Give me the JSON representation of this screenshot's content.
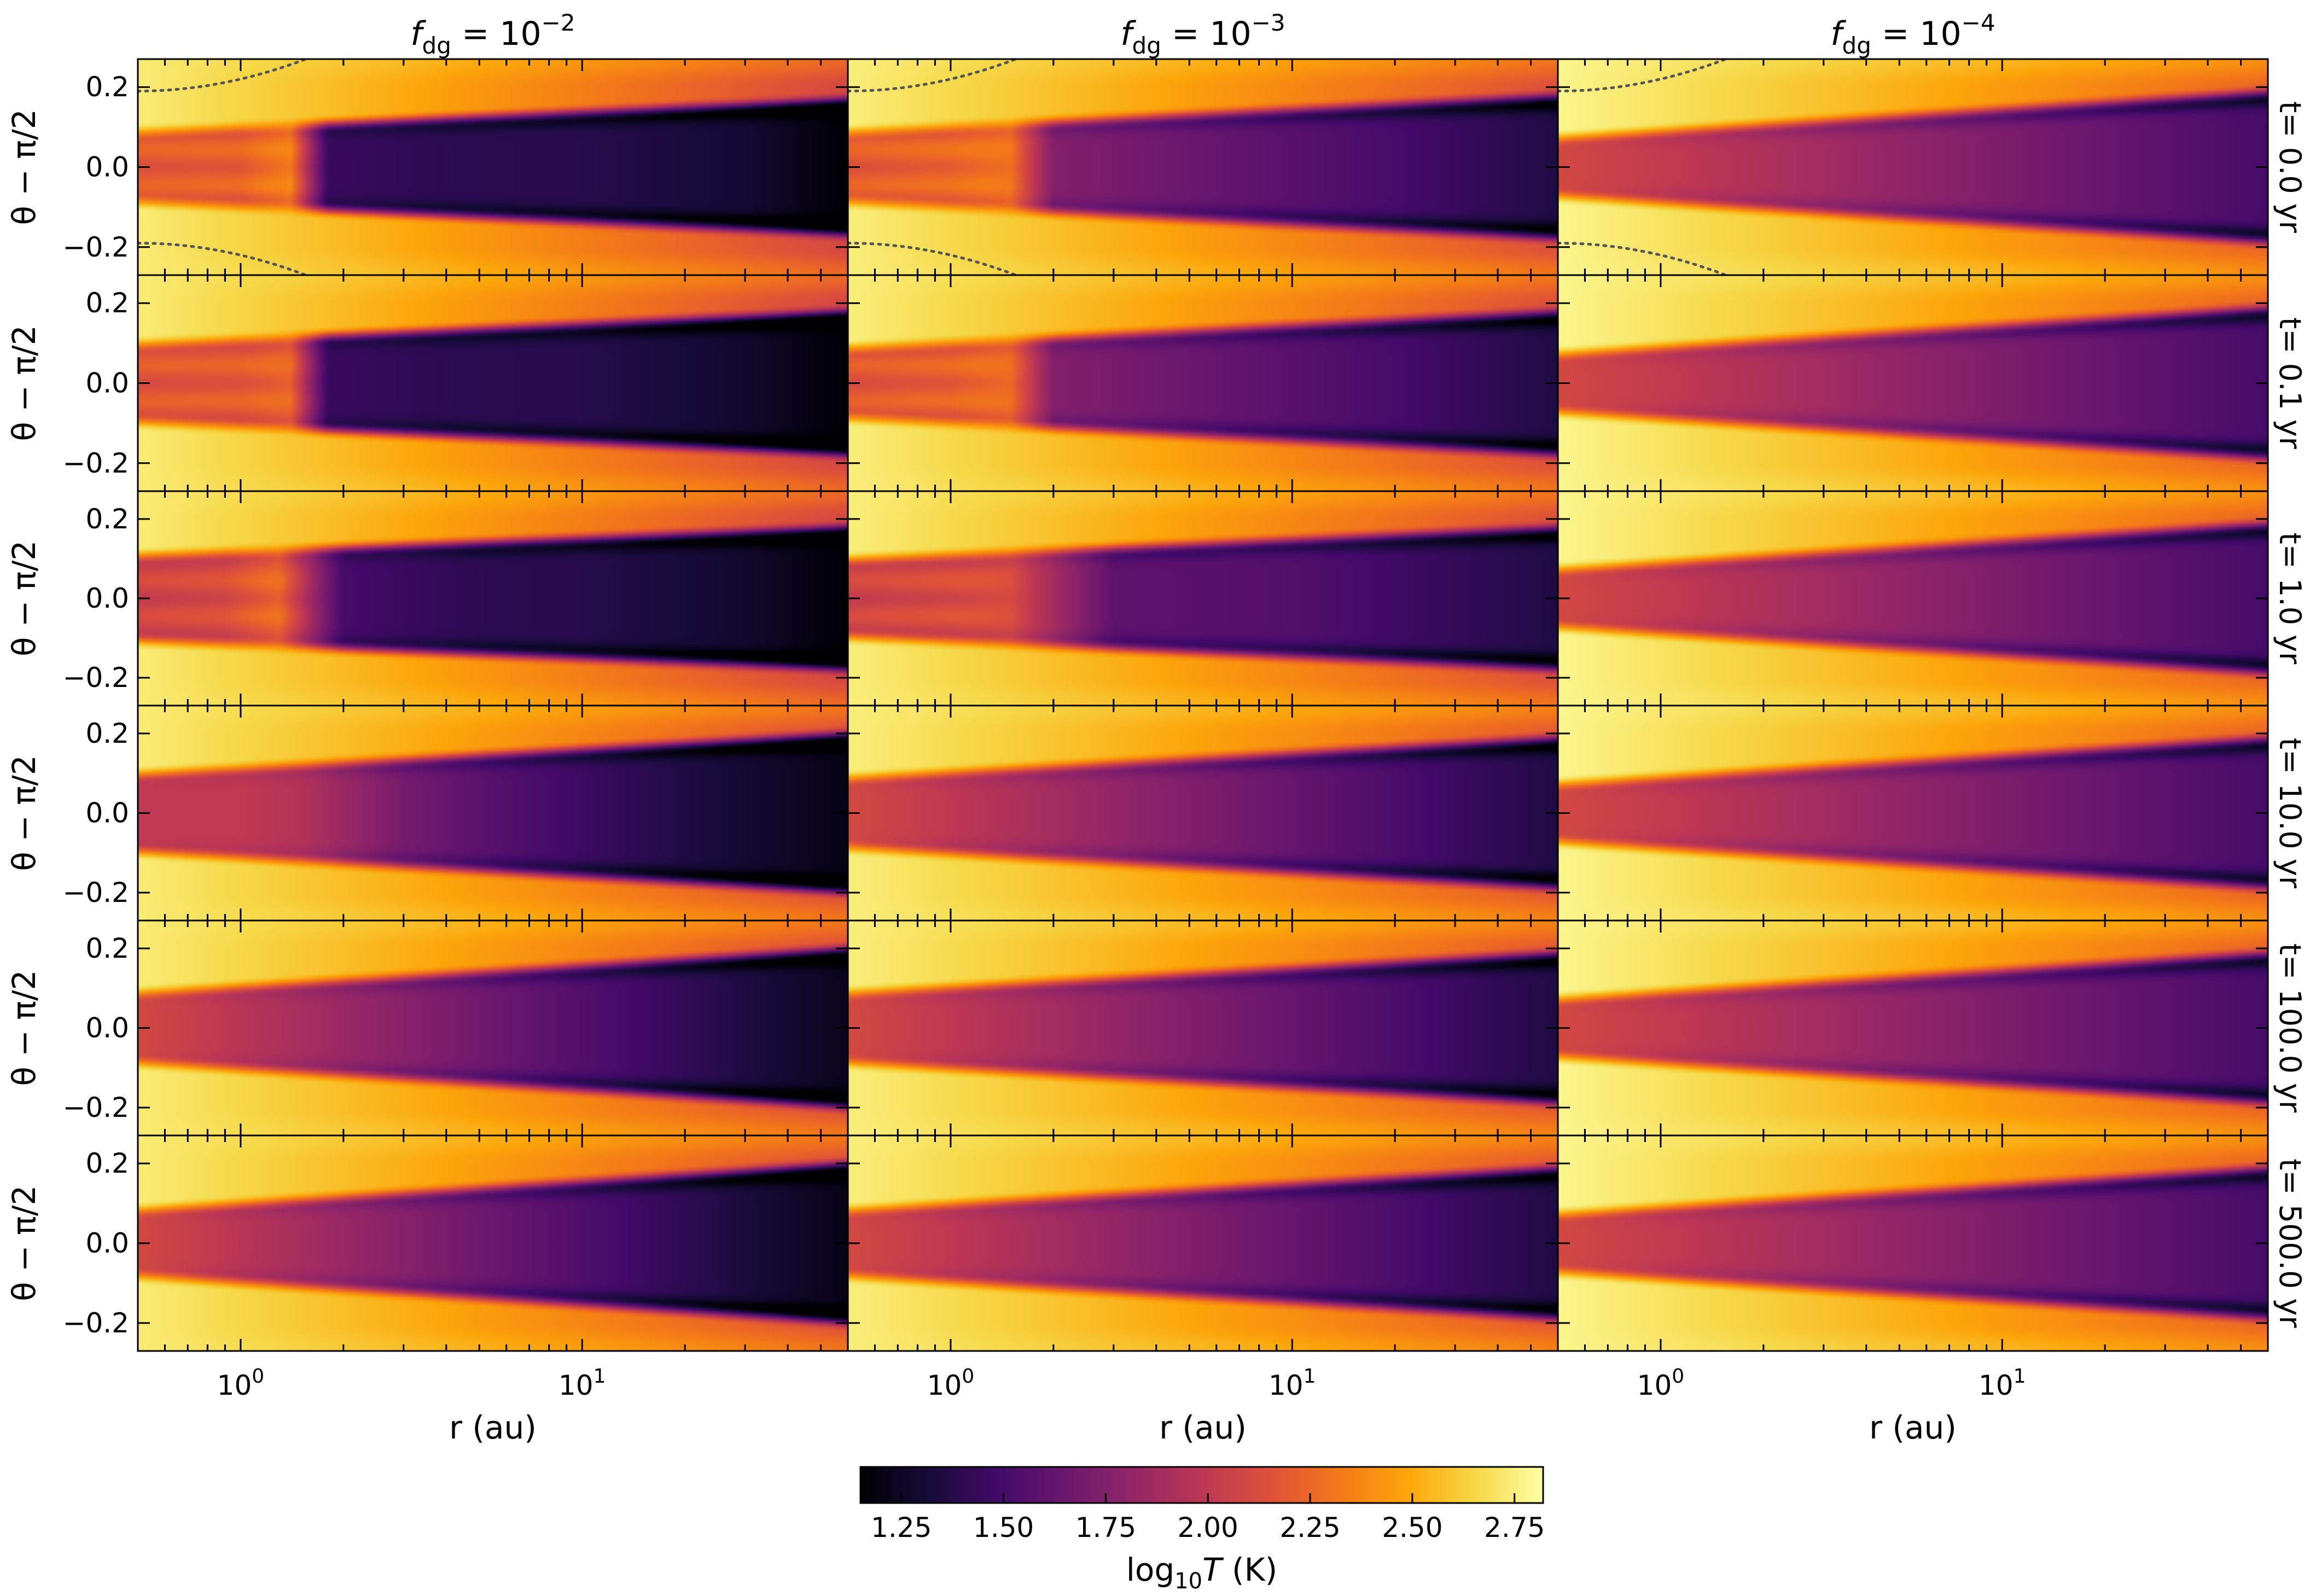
{
  "chart_data": {
    "type": "heatmap",
    "panel_grid": {
      "rows": 6,
      "cols": 3
    },
    "column_titles": [
      {
        "base": "f",
        "sub": "dg",
        "rest": " = 10",
        "sup": "−2"
      },
      {
        "base": "f",
        "sub": "dg",
        "rest": " = 10",
        "sup": "−3"
      },
      {
        "base": "f",
        "sub": "dg",
        "rest": " = 10",
        "sup": "−4"
      }
    ],
    "row_labels": [
      "t= 0.0 yr",
      "t= 0.1 yr",
      "t= 1.0 yr",
      "t= 10.0 yr",
      "t= 100.0 yr",
      "t= 500.0 yr"
    ],
    "xlabel": "r (au)",
    "ylabel": "θ − π/2",
    "x_scale": "log",
    "xlim": [
      0.5,
      60
    ],
    "x_ticks": [
      {
        "value": 1,
        "base": "10",
        "sup": "0"
      },
      {
        "value": 10,
        "base": "10",
        "sup": "1"
      }
    ],
    "ylim": [
      -0.27,
      0.27
    ],
    "y_ticks": [
      0.2,
      0.0,
      -0.2
    ],
    "y_tick_labels": [
      "0.2",
      "0.0",
      "−0.2"
    ],
    "colormap": "inferno",
    "colorbar": {
      "range": [
        1.15,
        2.82
      ],
      "ticks": [
        1.25,
        1.5,
        1.75,
        2.0,
        2.25,
        2.5,
        2.75
      ],
      "tick_labels": [
        "1.25",
        "1.50",
        "1.75",
        "2.00",
        "2.25",
        "2.50",
        "2.75"
      ],
      "label": {
        "pre": "log",
        "sub": "10",
        "italic": "T",
        "post": " (K)"
      }
    },
    "colorbar_label_text": "log10 T (K)",
    "fields": {
      "description_values_are_log10_T": true,
      "panels": [
        {
          "row": 0,
          "col": 0,
          "inner_edge": 2.74,
          "outer_edge": 2.1,
          "inner_mid": 2.06,
          "outer_mid": 1.18,
          "core_h0": 0.09,
          "core_h1": 0.17,
          "core_split": 1.05,
          "core_r": [
            0.5,
            1.0,
            1.4,
            1.8,
            4,
            10,
            30,
            60
          ],
          "core_T": [
            2.12,
            2.15,
            2.3,
            1.45,
            1.4,
            1.38,
            1.3,
            1.15
          ],
          "hot_h": 0.17,
          "cold_sheath": true,
          "opacity_line": true
        },
        {
          "row": 0,
          "col": 1,
          "inner_edge": 2.75,
          "outer_edge": 2.15,
          "inner_mid": 2.08,
          "outer_mid": 1.32,
          "core_h0": 0.09,
          "core_h1": 0.18,
          "core_split": 1.0,
          "core_r": [
            0.5,
            1.0,
            1.5,
            2.0,
            5,
            20,
            60
          ],
          "core_T": [
            2.12,
            2.18,
            2.28,
            1.75,
            1.65,
            1.5,
            1.35
          ],
          "hot_h": 0.15,
          "cold_sheath": true,
          "opacity_line": true
        },
        {
          "row": 0,
          "col": 2,
          "inner_edge": 2.78,
          "outer_edge": 2.25,
          "inner_mid": 2.1,
          "outer_mid": 1.45,
          "core_h0": 0.075,
          "core_h1": 0.19,
          "core_split": 0,
          "core_r": [
            0.5,
            60
          ],
          "core_T": [
            2.1,
            1.5
          ],
          "hot_h": 0.13,
          "cold_sheath": true,
          "opacity_line": true
        },
        {
          "row": 1,
          "col": 0,
          "inner_edge": 2.74,
          "outer_edge": 2.1,
          "inner_mid": 2.05,
          "outer_mid": 1.18,
          "core_h0": 0.1,
          "core_h1": 0.18,
          "core_split": 1.05,
          "core_r": [
            0.5,
            1.0,
            1.4,
            1.8,
            4,
            10,
            30,
            60
          ],
          "core_T": [
            2.1,
            2.12,
            2.2,
            1.45,
            1.4,
            1.38,
            1.28,
            1.15
          ],
          "hot_h": 0.17,
          "cold_sheath": true,
          "opacity_line": false
        },
        {
          "row": 1,
          "col": 1,
          "inner_edge": 2.75,
          "outer_edge": 2.15,
          "inner_mid": 2.08,
          "outer_mid": 1.32,
          "core_h0": 0.09,
          "core_h1": 0.18,
          "core_split": 1.0,
          "core_r": [
            0.5,
            1.0,
            1.5,
            2.0,
            5,
            20,
            60
          ],
          "core_T": [
            2.1,
            2.15,
            2.25,
            1.75,
            1.65,
            1.5,
            1.35
          ],
          "hot_h": 0.15,
          "cold_sheath": true,
          "opacity_line": false
        },
        {
          "row": 1,
          "col": 2,
          "inner_edge": 2.78,
          "outer_edge": 2.25,
          "inner_mid": 2.1,
          "outer_mid": 1.45,
          "core_h0": 0.075,
          "core_h1": 0.19,
          "core_split": 0,
          "core_r": [
            0.5,
            60
          ],
          "core_T": [
            2.1,
            1.5
          ],
          "hot_h": 0.13,
          "cold_sheath": true,
          "opacity_line": false
        },
        {
          "row": 2,
          "col": 0,
          "inner_edge": 2.74,
          "outer_edge": 2.1,
          "inner_mid": 2.05,
          "outer_mid": 1.18,
          "core_h0": 0.11,
          "core_h1": 0.18,
          "core_split": 1.05,
          "core_r": [
            0.5,
            0.9,
            1.3,
            2.0,
            3.0,
            5,
            10,
            30,
            60
          ],
          "core_T": [
            2.0,
            2.05,
            2.2,
            1.5,
            1.45,
            1.4,
            1.38,
            1.28,
            1.15
          ],
          "hot_h": 0.17,
          "cold_sheath": true,
          "opacity_line": false
        },
        {
          "row": 2,
          "col": 1,
          "inner_edge": 2.75,
          "outer_edge": 2.15,
          "inner_mid": 2.05,
          "outer_mid": 1.32,
          "core_h0": 0.1,
          "core_h1": 0.18,
          "core_split": 1.0,
          "core_r": [
            0.5,
            1.0,
            1.5,
            3.0,
            10,
            60
          ],
          "core_T": [
            2.0,
            2.05,
            2.1,
            1.6,
            1.55,
            1.35
          ],
          "hot_h": 0.15,
          "cold_sheath": true,
          "opacity_line": false
        },
        {
          "row": 2,
          "col": 2,
          "inner_edge": 2.78,
          "outer_edge": 2.25,
          "inner_mid": 2.1,
          "outer_mid": 1.45,
          "core_h0": 0.075,
          "core_h1": 0.19,
          "core_split": 0,
          "core_r": [
            0.5,
            60
          ],
          "core_T": [
            2.1,
            1.5
          ],
          "hot_h": 0.13,
          "cold_sheath": true,
          "opacity_line": false
        },
        {
          "row": 3,
          "col": 0,
          "inner_edge": 2.74,
          "outer_edge": 2.15,
          "inner_mid": 2.05,
          "outer_mid": 1.2,
          "core_h0": 0.1,
          "core_h1": 0.2,
          "core_split": 0,
          "core_r": [
            0.5,
            1.0,
            1.5,
            3.0,
            6,
            20,
            60
          ],
          "core_T": [
            2.0,
            2.0,
            1.95,
            1.7,
            1.55,
            1.35,
            1.2
          ],
          "hot_h": 0.15,
          "cold_sheath": true,
          "opacity_line": false
        },
        {
          "row": 3,
          "col": 1,
          "inner_edge": 2.75,
          "outer_edge": 2.2,
          "inner_mid": 2.1,
          "outer_mid": 1.35,
          "core_h0": 0.09,
          "core_h1": 0.19,
          "core_split": 0,
          "core_r": [
            0.5,
            60
          ],
          "core_T": [
            2.1,
            1.35
          ],
          "hot_h": 0.14,
          "cold_sheath": true,
          "opacity_line": false
        },
        {
          "row": 3,
          "col": 2,
          "inner_edge": 2.78,
          "outer_edge": 2.25,
          "inner_mid": 2.1,
          "outer_mid": 1.45,
          "core_h0": 0.075,
          "core_h1": 0.19,
          "core_split": 0,
          "core_r": [
            0.5,
            60
          ],
          "core_T": [
            2.1,
            1.5
          ],
          "hot_h": 0.13,
          "cold_sheath": true,
          "opacity_line": false
        },
        {
          "row": 4,
          "col": 0,
          "inner_edge": 2.74,
          "outer_edge": 2.15,
          "inner_mid": 2.1,
          "outer_mid": 1.22,
          "core_h0": 0.09,
          "core_h1": 0.2,
          "core_split": 0,
          "core_r": [
            0.5,
            60
          ],
          "core_T": [
            2.1,
            1.22
          ],
          "hot_h": 0.14,
          "cold_sheath": true,
          "opacity_line": false
        },
        {
          "row": 4,
          "col": 1,
          "inner_edge": 2.75,
          "outer_edge": 2.2,
          "inner_mid": 2.1,
          "outer_mid": 1.35,
          "core_h0": 0.09,
          "core_h1": 0.19,
          "core_split": 0,
          "core_r": [
            0.5,
            60
          ],
          "core_T": [
            2.1,
            1.35
          ],
          "hot_h": 0.14,
          "cold_sheath": true,
          "opacity_line": false
        },
        {
          "row": 4,
          "col": 2,
          "inner_edge": 2.78,
          "outer_edge": 2.25,
          "inner_mid": 2.1,
          "outer_mid": 1.45,
          "core_h0": 0.075,
          "core_h1": 0.19,
          "core_split": 0,
          "core_r": [
            0.5,
            60
          ],
          "core_T": [
            2.1,
            1.5
          ],
          "hot_h": 0.13,
          "cold_sheath": true,
          "opacity_line": false
        },
        {
          "row": 5,
          "col": 0,
          "inner_edge": 2.74,
          "outer_edge": 2.15,
          "inner_mid": 2.1,
          "outer_mid": 1.2,
          "core_h0": 0.085,
          "core_h1": 0.2,
          "core_split": 0,
          "core_r": [
            0.5,
            60
          ],
          "core_T": [
            2.1,
            1.2
          ],
          "hot_h": 0.14,
          "cold_sheath": true,
          "opacity_line": false
        },
        {
          "row": 5,
          "col": 1,
          "inner_edge": 2.75,
          "outer_edge": 2.2,
          "inner_mid": 2.1,
          "outer_mid": 1.35,
          "core_h0": 0.085,
          "core_h1": 0.19,
          "core_split": 0,
          "core_r": [
            0.5,
            60
          ],
          "core_T": [
            2.1,
            1.35
          ],
          "hot_h": 0.14,
          "cold_sheath": true,
          "opacity_line": false
        },
        {
          "row": 5,
          "col": 2,
          "inner_edge": 2.78,
          "outer_edge": 2.25,
          "inner_mid": 2.1,
          "outer_mid": 1.45,
          "core_h0": 0.075,
          "core_h1": 0.19,
          "core_split": 0,
          "core_r": [
            0.5,
            60
          ],
          "core_T": [
            2.1,
            1.5
          ],
          "hot_h": 0.13,
          "cold_sheath": true,
          "opacity_line": false
        }
      ]
    },
    "grid": false
  }
}
